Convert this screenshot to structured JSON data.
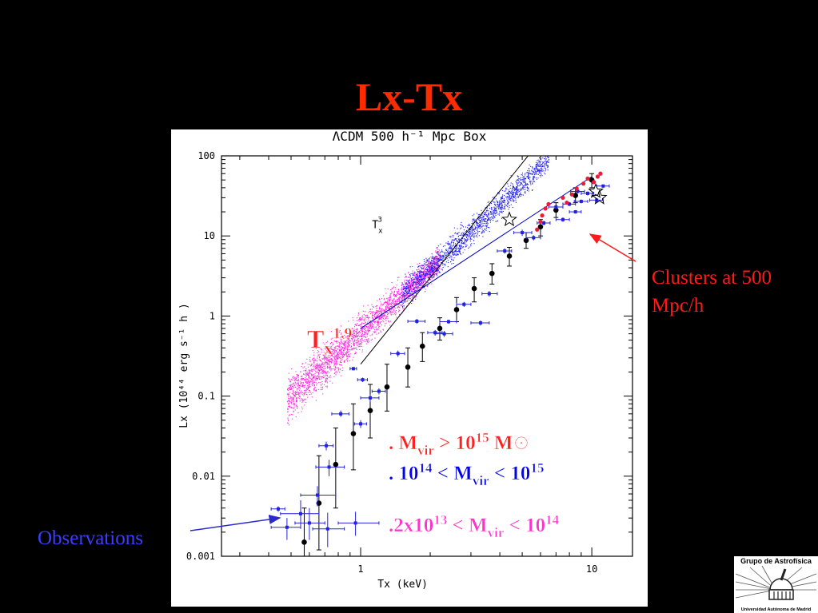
{
  "slide": {
    "title": "Lx-Tx",
    "clusters_label": "Clusters at 500 Mpc/h",
    "observations_label": "Observations"
  },
  "chart_data": {
    "type": "scatter",
    "title": "ΛCDM 500 h⁻¹ Mpc Box",
    "xlabel": "Tx (keV)",
    "ylabel": "Lx (10⁴⁴ erg s⁻¹ h )",
    "xscale": "log",
    "yscale": "log",
    "xlim": [
      0.25,
      15
    ],
    "ylim": [
      0.001,
      100
    ],
    "x_ticks": [
      "1",
      "10"
    ],
    "y_ticks": [
      "0.001",
      "0.01",
      "0.1",
      "1",
      "10",
      "100"
    ],
    "reference_lines": [
      {
        "name": "Tx3",
        "label": "T",
        "sup": "3",
        "sub": "x",
        "color": "#000000",
        "points": [
          [
            1.0,
            0.25
          ],
          [
            5.3,
            100
          ]
        ]
      },
      {
        "name": "Tx1.9",
        "label": "T",
        "sup": "1.9",
        "sub": "x",
        "color": "#0000cc",
        "points": [
          [
            1.0,
            0.7
          ],
          [
            10.0,
            55
          ]
        ]
      }
    ],
    "legend": [
      {
        "color": "#ff2020",
        "parts": [
          ". M",
          "vir",
          " > 10",
          "15",
          " M⊙"
        ]
      },
      {
        "color": "#0000ee",
        "parts": [
          ". 10",
          "14",
          " < M",
          "vir",
          " < 10",
          "15"
        ]
      },
      {
        "color": "#ff33cc",
        "parts": [
          ".2x10",
          "13",
          " < M",
          "vir",
          " < 10",
          "14"
        ]
      }
    ],
    "binned_means": [
      {
        "x": 0.57,
        "y": 0.0015,
        "ylo": 0.0008,
        "yhi": 0.004
      },
      {
        "x": 0.66,
        "y": 0.0046,
        "ylo": 0.0012,
        "yhi": 0.018
      },
      {
        "x": 0.78,
        "y": 0.014,
        "ylo": 0.004,
        "yhi": 0.04
      },
      {
        "x": 0.93,
        "y": 0.034,
        "ylo": 0.012,
        "yhi": 0.08
      },
      {
        "x": 1.1,
        "y": 0.066,
        "ylo": 0.03,
        "yhi": 0.14
      },
      {
        "x": 1.3,
        "y": 0.13,
        "ylo": 0.065,
        "yhi": 0.25
      },
      {
        "x": 1.6,
        "y": 0.23,
        "ylo": 0.13,
        "yhi": 0.4
      },
      {
        "x": 1.85,
        "y": 0.42,
        "ylo": 0.27,
        "yhi": 0.62
      },
      {
        "x": 2.2,
        "y": 0.7,
        "ylo": 0.5,
        "yhi": 0.95
      },
      {
        "x": 2.6,
        "y": 1.2,
        "ylo": 0.85,
        "yhi": 1.7
      },
      {
        "x": 3.1,
        "y": 2.2,
        "ylo": 1.5,
        "yhi": 3.0
      },
      {
        "x": 3.7,
        "y": 3.4,
        "ylo": 2.5,
        "yhi": 4.5
      },
      {
        "x": 4.4,
        "y": 5.6,
        "ylo": 4.2,
        "yhi": 7.2
      },
      {
        "x": 5.2,
        "y": 8.8,
        "ylo": 7.0,
        "yhi": 11
      },
      {
        "x": 6.0,
        "y": 13,
        "ylo": 10,
        "yhi": 16
      },
      {
        "x": 7.0,
        "y": 21,
        "ylo": 17,
        "yhi": 26
      },
      {
        "x": 8.5,
        "y": 32,
        "ylo": 26,
        "yhi": 40
      },
      {
        "x": 10.0,
        "y": 50,
        "ylo": 40,
        "yhi": 60
      }
    ],
    "massive_clusters": [
      {
        "x": 6.1,
        "y": 18
      },
      {
        "x": 6.0,
        "y": 15
      },
      {
        "x": 6.3,
        "y": 22
      },
      {
        "x": 7.5,
        "y": 30
      },
      {
        "x": 7.8,
        "y": 26
      },
      {
        "x": 8.6,
        "y": 39
      },
      {
        "x": 9.2,
        "y": 45
      },
      {
        "x": 9.6,
        "y": 52
      },
      {
        "x": 10.2,
        "y": 47
      },
      {
        "x": 10.6,
        "y": 55
      },
      {
        "x": 10.9,
        "y": 60
      },
      {
        "x": 8.2,
        "y": 33
      },
      {
        "x": 5.8,
        "y": 12
      },
      {
        "x": 6.5,
        "y": 25
      }
    ],
    "stars": [
      {
        "x": 4.4,
        "y": 16
      },
      {
        "x": 10.4,
        "y": 36
      },
      {
        "x": 10.8,
        "y": 30
      }
    ],
    "observations": [
      {
        "x": 0.44,
        "y": 0.0039,
        "xlo": 0.41,
        "xhi": 0.47,
        "ylo": 0.0036,
        "yhi": 0.0042
      },
      {
        "x": 0.48,
        "y": 0.0023,
        "xlo": 0.41,
        "xhi": 0.55,
        "ylo": 0.0016,
        "yhi": 0.003
      },
      {
        "x": 0.55,
        "y": 0.0034,
        "xlo": 0.45,
        "xhi": 0.66,
        "ylo": 0.0022,
        "yhi": 0.005
      },
      {
        "x": 0.6,
        "y": 0.0026,
        "xlo": 0.52,
        "xhi": 0.7,
        "ylo": 0.0016,
        "yhi": 0.004
      },
      {
        "x": 0.65,
        "y": 0.0058,
        "xlo": 0.55,
        "xhi": 0.78,
        "ylo": 0.0042,
        "yhi": 0.0075
      },
      {
        "x": 0.72,
        "y": 0.0022,
        "xlo": 0.62,
        "xhi": 0.85,
        "ylo": 0.0013,
        "yhi": 0.0035
      },
      {
        "x": 0.95,
        "y": 0.0026,
        "xlo": 0.8,
        "xhi": 1.2,
        "ylo": 0.0018,
        "yhi": 0.0036
      },
      {
        "x": 0.73,
        "y": 0.013,
        "xlo": 0.64,
        "xhi": 0.85,
        "ylo": 0.01,
        "yhi": 0.016
      },
      {
        "x": 0.71,
        "y": 0.024,
        "xlo": 0.66,
        "xhi": 0.76,
        "ylo": 0.021,
        "yhi": 0.027
      },
      {
        "x": 0.82,
        "y": 0.06,
        "xlo": 0.75,
        "xhi": 0.89,
        "ylo": 0.055,
        "yhi": 0.066
      },
      {
        "x": 0.93,
        "y": 0.22,
        "xlo": 0.9,
        "xhi": 0.96,
        "ylo": 0.21,
        "yhi": 0.23
      },
      {
        "x": 1.02,
        "y": 0.16,
        "xlo": 0.97,
        "xhi": 1.07,
        "ylo": 0.15,
        "yhi": 0.17
      },
      {
        "x": 1.1,
        "y": 0.095,
        "xlo": 1.0,
        "xhi": 1.2,
        "ylo": 0.085,
        "yhi": 0.105
      },
      {
        "x": 1.0,
        "y": 0.045,
        "xlo": 0.94,
        "xhi": 1.06,
        "ylo": 0.04,
        "yhi": 0.05
      },
      {
        "x": 1.2,
        "y": 0.115,
        "xlo": 1.12,
        "xhi": 1.28,
        "ylo": 0.105,
        "yhi": 0.125
      },
      {
        "x": 1.45,
        "y": 0.34,
        "xlo": 1.35,
        "xhi": 1.55,
        "ylo": 0.31,
        "yhi": 0.37
      },
      {
        "x": 1.75,
        "y": 0.86,
        "xlo": 1.6,
        "xhi": 1.9,
        "ylo": 0.8,
        "yhi": 0.92
      },
      {
        "x": 2.1,
        "y": 0.62,
        "xlo": 1.95,
        "xhi": 2.25,
        "ylo": 0.57,
        "yhi": 0.67
      },
      {
        "x": 2.4,
        "y": 0.85,
        "xlo": 2.2,
        "xhi": 2.6,
        "ylo": 0.8,
        "yhi": 0.9
      },
      {
        "x": 2.3,
        "y": 0.6,
        "xlo": 2.1,
        "xhi": 2.5,
        "ylo": 0.55,
        "yhi": 0.65
      },
      {
        "x": 2.8,
        "y": 1.4,
        "xlo": 2.6,
        "xhi": 3.0,
        "ylo": 1.3,
        "yhi": 1.5
      },
      {
        "x": 3.3,
        "y": 0.82,
        "xlo": 3.0,
        "xhi": 3.6,
        "ylo": 0.76,
        "yhi": 0.88
      },
      {
        "x": 3.6,
        "y": 1.9,
        "xlo": 3.35,
        "xhi": 3.9,
        "ylo": 1.75,
        "yhi": 2.05
      },
      {
        "x": 4.2,
        "y": 6.5,
        "xlo": 3.9,
        "xhi": 4.5,
        "ylo": 6.0,
        "yhi": 7.0
      },
      {
        "x": 5.0,
        "y": 11,
        "xlo": 4.6,
        "xhi": 5.5,
        "ylo": 10,
        "yhi": 12
      },
      {
        "x": 5.6,
        "y": 9.5,
        "xlo": 5.2,
        "xhi": 6.0,
        "ylo": 8.8,
        "yhi": 10.2
      },
      {
        "x": 6.2,
        "y": 14.5,
        "xlo": 5.8,
        "xhi": 6.6,
        "ylo": 13.5,
        "yhi": 15.5
      },
      {
        "x": 7.0,
        "y": 23,
        "xlo": 6.5,
        "xhi": 7.5,
        "ylo": 21.5,
        "yhi": 24.5
      },
      {
        "x": 7.5,
        "y": 16,
        "xlo": 7.0,
        "xhi": 8.0,
        "ylo": 15,
        "yhi": 17
      },
      {
        "x": 8.0,
        "y": 25,
        "xlo": 7.5,
        "xhi": 8.5,
        "ylo": 23.5,
        "yhi": 26.5
      },
      {
        "x": 8.5,
        "y": 20,
        "xlo": 8.0,
        "xhi": 9.0,
        "ylo": 19,
        "yhi": 21
      },
      {
        "x": 9.0,
        "y": 27,
        "xlo": 8.4,
        "xhi": 9.6,
        "ylo": 25.5,
        "yhi": 28.5
      },
      {
        "x": 9.6,
        "y": 34,
        "xlo": 9.0,
        "xhi": 10.2,
        "ylo": 32,
        "yhi": 36
      },
      {
        "x": 10.5,
        "y": 28,
        "xlo": 9.8,
        "xhi": 11.2,
        "ylo": 26.5,
        "yhi": 29.5
      },
      {
        "x": 11.2,
        "y": 42,
        "xlo": 10.5,
        "xhi": 11.9,
        "ylo": 40,
        "yhi": 44
      },
      {
        "x": 8.7,
        "y": 36,
        "xlo": 8.1,
        "xhi": 9.3,
        "ylo": 34,
        "yhi": 38
      }
    ],
    "scatter_bands": [
      {
        "name": "small",
        "color": "#ff22dd",
        "xmin": 0.48,
        "xmax": 2.2,
        "count": 2600
      },
      {
        "name": "medium",
        "color": "#1a1aee",
        "xmin": 1.5,
        "xmax": 6.5,
        "count": 1700
      }
    ]
  },
  "logo": {
    "top_text": "Grupo de Astrofísica",
    "bottom_text": "Universidad Autónoma de Madrid"
  }
}
